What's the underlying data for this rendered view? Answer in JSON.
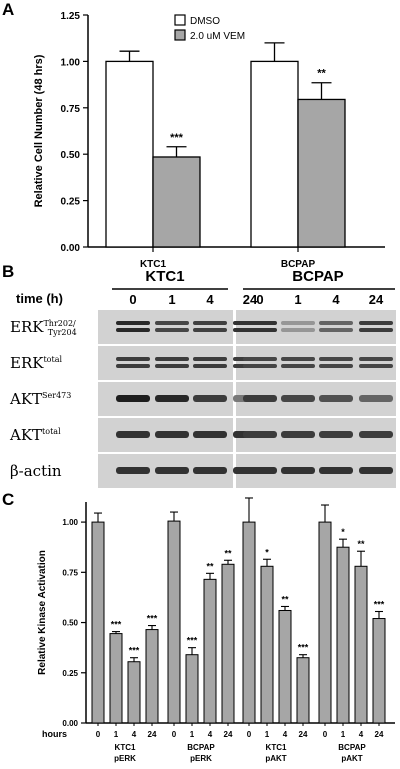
{
  "panels": {
    "a_letter": "A",
    "b_letter": "B",
    "c_letter": "C"
  },
  "chart_data": [
    {
      "type": "bar",
      "panel": "A",
      "ylabel": "Relative Cell Number (48 hrs)",
      "ylim": [
        0,
        1.25
      ],
      "yticks": [
        "0.00",
        "0.25",
        "0.50",
        "0.75",
        "1.00",
        "1.25"
      ],
      "categories": [
        "KTC1",
        "BCPAP"
      ],
      "series": [
        {
          "name": "DMSO",
          "color": "#ffffff",
          "values": [
            1.0,
            1.0
          ],
          "errors": [
            0.055,
            0.1
          ]
        },
        {
          "name": "2.0 uM VEM",
          "color": "#a6a6a6",
          "values": [
            0.485,
            0.795
          ],
          "errors": [
            0.055,
            0.09
          ]
        }
      ],
      "annotations": [
        {
          "series": 1,
          "category": 0,
          "text": "***"
        },
        {
          "series": 1,
          "category": 1,
          "text": "**"
        }
      ],
      "legend_position": "top-center"
    },
    {
      "type": "bar",
      "panel": "C",
      "ylabel": "Relative Kinase Activation",
      "ylim": [
        0,
        1.1
      ],
      "yticks": [
        "0.00",
        "0.25",
        "0.50",
        "0.75",
        "1.00"
      ],
      "x_prefix_label": "hours",
      "groups": [
        {
          "label1": "KTC1",
          "label2": "pERK",
          "ticks": [
            "0",
            "1",
            "4",
            "24"
          ],
          "values": [
            1.0,
            0.445,
            0.305,
            0.465
          ],
          "errors": [
            0.045,
            0.01,
            0.02,
            0.02
          ],
          "sig": [
            "",
            "***",
            "***",
            "***"
          ]
        },
        {
          "label1": "BCPAP",
          "label2": "pERK",
          "ticks": [
            "0",
            "1",
            "4",
            "24"
          ],
          "values": [
            1.005,
            0.34,
            0.715,
            0.79
          ],
          "errors": [
            0.045,
            0.035,
            0.03,
            0.02
          ],
          "sig": [
            "",
            "***",
            "**",
            "**"
          ]
        },
        {
          "label1": "KTC1",
          "label2": "pAKT",
          "ticks": [
            "0",
            "1",
            "4",
            "24"
          ],
          "values": [
            1.0,
            0.78,
            0.56,
            0.325
          ],
          "errors": [
            0.12,
            0.035,
            0.02,
            0.015
          ],
          "sig": [
            "",
            "*",
            "**",
            "***"
          ]
        },
        {
          "label1": "BCPAP",
          "label2": "pAKT",
          "ticks": [
            "0",
            "1",
            "4",
            "24"
          ],
          "values": [
            1.0,
            0.875,
            0.78,
            0.52
          ],
          "errors": [
            0.085,
            0.04,
            0.075,
            0.035
          ],
          "sig": [
            "",
            "*",
            "**",
            "***"
          ]
        }
      ],
      "bar_color": "#a6a6a6"
    }
  ],
  "blot": {
    "time_label": "time (h)",
    "cell_lines": [
      "KTC1",
      "BCPAP"
    ],
    "timepoints": [
      "0",
      "1",
      "4",
      "24"
    ],
    "rows": [
      {
        "label": "ERK",
        "sup": "Thr202/",
        "sub": "Tyr204",
        "intensities": [
          0.9,
          0.75,
          0.78,
          0.85,
          0.85,
          0.35,
          0.6,
          0.8
        ],
        "double": true
      },
      {
        "label": "ERK",
        "sup": "total",
        "sub": "",
        "intensities": [
          0.8,
          0.8,
          0.8,
          0.8,
          0.75,
          0.75,
          0.75,
          0.75
        ],
        "double": true
      },
      {
        "label": "AKT",
        "sup": "Ser473",
        "sub": "",
        "intensities": [
          0.95,
          0.9,
          0.8,
          0.5,
          0.8,
          0.75,
          0.7,
          0.6
        ],
        "double": false
      },
      {
        "label": "AKT",
        "sup": "total",
        "sub": "",
        "intensities": [
          0.85,
          0.85,
          0.85,
          0.85,
          0.8,
          0.8,
          0.8,
          0.8
        ],
        "double": false
      },
      {
        "label": "β-actin",
        "sup": "",
        "sub": "",
        "intensities": [
          0.85,
          0.85,
          0.85,
          0.85,
          0.85,
          0.85,
          0.85,
          0.85
        ],
        "double": false
      }
    ]
  }
}
